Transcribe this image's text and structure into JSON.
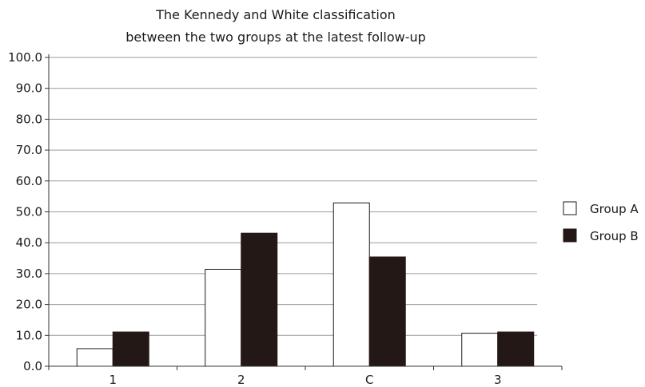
{
  "chart_data": {
    "type": "bar",
    "title": [
      "The Kennedy and White classification",
      "between the two groups at the latest follow-up"
    ],
    "xlabel": "",
    "ylabel": "",
    "categories": [
      "1",
      "2",
      "C",
      "3"
    ],
    "ylim": [
      0,
      100
    ],
    "yticks": [
      "0.0",
      "10.0",
      "20.0",
      "30.0",
      "40.0",
      "50.0",
      "60.0",
      "70.0",
      "80.0",
      "90.0",
      "100.0"
    ],
    "grid": true,
    "legend_position": "right",
    "series": [
      {
        "name": "Group A",
        "values": [
          5.7,
          31.4,
          52.9,
          10.7
        ],
        "color": "#ffffff"
      },
      {
        "name": "Group B",
        "values": [
          11.1,
          43.1,
          35.4,
          11.1
        ],
        "color": "#231815"
      }
    ]
  }
}
